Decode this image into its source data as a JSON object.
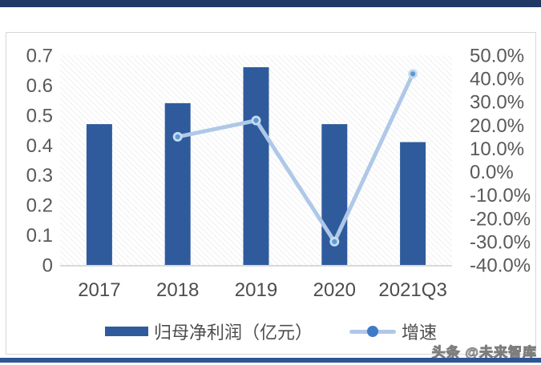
{
  "page": {
    "watermark_text": "头条 @未来智库",
    "colors": {
      "top_bar": "#1F3864",
      "bottom_bar": "#2E5596",
      "card_border": "#D6D6D6",
      "axis_text": "#595959",
      "category_text": "#4D4D4D",
      "baseline": "#D9D9D9",
      "hatch_line": "#E7E7EA"
    }
  },
  "chart_data": {
    "type": "bar",
    "subtype": "bar-line-combo",
    "title": "",
    "categories": [
      "2017",
      "2018",
      "2019",
      "2020",
      "2021Q3"
    ],
    "series": [
      {
        "name": "归母净利润（亿元）",
        "type": "bar",
        "axis": "left",
        "color": "#2F5B9D",
        "values": [
          0.47,
          0.54,
          0.66,
          0.47,
          0.41
        ]
      },
      {
        "name": "增速",
        "type": "line",
        "axis": "right",
        "color": "#AFC8E8",
        "marker_color": "#5B9BD5",
        "marker_ring_color": "#C7DBF0",
        "legend_dot_color": "#3F7AC8",
        "values": [
          null,
          15,
          22,
          -30,
          42
        ],
        "unit": "%"
      }
    ],
    "left_axis": {
      "min": 0,
      "max": 0.7,
      "step": 0.1,
      "ticks": [
        "0.7",
        "0.6",
        "0.5",
        "0.4",
        "0.3",
        "0.2",
        "0.1",
        "0"
      ]
    },
    "right_axis": {
      "min": -40,
      "max": 50,
      "step": 10,
      "ticks": [
        "50.0%",
        "40.0%",
        "30.0%",
        "20.0%",
        "10.0%",
        "0.0%",
        "-10.0%",
        "-20.0%",
        "-30.0%",
        "-40.0%"
      ]
    },
    "legend_position": "bottom",
    "grid": false,
    "plot_background": "diagonal-hatch"
  }
}
